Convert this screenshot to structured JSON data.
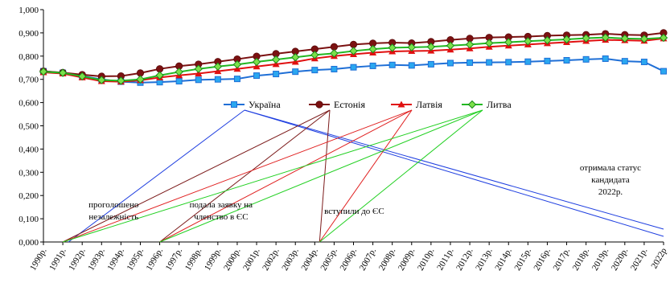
{
  "chart_data": {
    "type": "line",
    "title": "",
    "xlabel": "",
    "ylabel": "",
    "ylim": [
      0,
      1.0
    ],
    "yticks": [
      "0,000",
      "0,100",
      "0,200",
      "0,300",
      "0,400",
      "0,500",
      "0,600",
      "0,700",
      "0,800",
      "0,900",
      "1,000"
    ],
    "grid": false,
    "legend_placement": "center",
    "categories": [
      "1990р.",
      "1991р.",
      "1992р.",
      "1993р.",
      "1994р.",
      "1995р.",
      "1996р.",
      "1997р.",
      "1998р.",
      "1999р.",
      "2000р.",
      "2001р.",
      "2002р.",
      "2003р.",
      "2004р.",
      "2005р.",
      "2006р.",
      "2007р.",
      "2008р.",
      "2009р.",
      "2010р.",
      "2011р.",
      "2012р.",
      "2013р.",
      "2014р.",
      "2015р.",
      "2016р.",
      "2017р.",
      "2018р.",
      "2019р.",
      "2020р.",
      "2021р.",
      "2022р"
    ],
    "series": [
      {
        "name": "Україна",
        "color": "#1f6fd6",
        "marker": "square",
        "values": [
          0.735,
          0.728,
          0.714,
          0.7,
          0.69,
          0.686,
          0.688,
          0.692,
          0.698,
          0.7,
          0.702,
          0.716,
          0.723,
          0.733,
          0.74,
          0.744,
          0.752,
          0.758,
          0.762,
          0.76,
          0.765,
          0.77,
          0.772,
          0.773,
          0.774,
          0.776,
          0.779,
          0.782,
          0.786,
          0.789,
          0.778,
          0.775,
          0.735
        ]
      },
      {
        "name": "Естонія",
        "color": "#7b1111",
        "marker": "circle",
        "values": [
          0.735,
          0.729,
          0.72,
          0.713,
          0.714,
          0.727,
          0.745,
          0.757,
          0.765,
          0.776,
          0.787,
          0.799,
          0.81,
          0.82,
          0.83,
          0.84,
          0.85,
          0.855,
          0.858,
          0.856,
          0.862,
          0.87,
          0.876,
          0.88,
          0.882,
          0.884,
          0.888,
          0.89,
          0.892,
          0.896,
          0.892,
          0.89,
          0.9
        ]
      },
      {
        "name": "Латвія",
        "color": "#e01010",
        "marker": "triangle",
        "values": [
          0.73,
          0.725,
          0.708,
          0.692,
          0.69,
          0.696,
          0.708,
          0.717,
          0.725,
          0.735,
          0.745,
          0.755,
          0.765,
          0.775,
          0.79,
          0.8,
          0.808,
          0.815,
          0.82,
          0.822,
          0.823,
          0.828,
          0.833,
          0.84,
          0.845,
          0.85,
          0.855,
          0.86,
          0.865,
          0.87,
          0.868,
          0.866,
          0.876
        ]
      },
      {
        "name": "Литва",
        "color": "#22b822",
        "marker": "diamond",
        "values": [
          0.733,
          0.728,
          0.713,
          0.697,
          0.694,
          0.7,
          0.717,
          0.732,
          0.745,
          0.755,
          0.764,
          0.775,
          0.785,
          0.795,
          0.805,
          0.812,
          0.822,
          0.83,
          0.836,
          0.838,
          0.84,
          0.845,
          0.85,
          0.856,
          0.86,
          0.864,
          0.868,
          0.872,
          0.877,
          0.88,
          0.876,
          0.874,
          0.879
        ]
      }
    ],
    "annotations": [
      {
        "text": "проголошено незалежність",
        "lines": [
          "проголошено",
          "незалежність"
        ]
      },
      {
        "text": "подала заявку на членство в ЄС",
        "lines": [
          "подала заявку на",
          "членство в ЄС"
        ]
      },
      {
        "text": "вступили до ЄС",
        "lines": [
          "вступили до ЄС"
        ]
      },
      {
        "text": "отримала статус кандидата 2022р.",
        "lines": [
          "отримала статус",
          "кандидата",
          "2022р."
        ]
      }
    ]
  }
}
